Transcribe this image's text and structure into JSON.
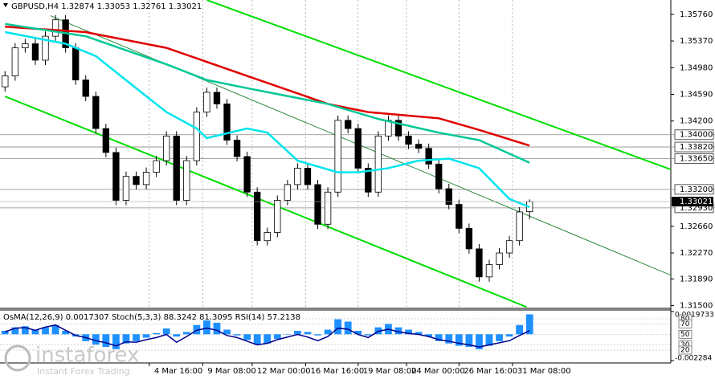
{
  "chart_data": {
    "type": "candlestick",
    "title": "GBPUSD,H4  1.32874 1.33053 1.32761 1.33021",
    "open": [
      1.347,
      1.3486,
      1.3527,
      1.3533,
      1.3509,
      1.3544,
      1.3568,
      1.3527,
      1.348,
      1.3456,
      1.3409,
      1.3374,
      1.3304,
      1.3339,
      1.3327,
      1.3345,
      1.3362,
      1.3398,
      1.3304,
      1.3362,
      1.3433,
      1.3462,
      1.3445,
      1.3392,
      1.3368,
      1.3316,
      1.3245,
      1.3257,
      1.3304,
      1.3327,
      1.3351,
      1.3327,
      1.3269,
      1.3316,
      1.3421,
      1.3409,
      1.3351,
      1.3316,
      1.3398,
      1.3421,
      1.3398,
      1.3386,
      1.338,
      1.3357,
      1.3321,
      1.3298,
      1.3263,
      1.3233,
      1.3192,
      1.321,
      1.3227,
      1.3245,
      1.32874
    ],
    "high": [
      1.3493,
      1.3534,
      1.354,
      1.354,
      1.3551,
      1.3575,
      1.3575,
      1.3534,
      1.3487,
      1.3463,
      1.3416,
      1.3381,
      1.3346,
      1.3346,
      1.3352,
      1.3369,
      1.3405,
      1.3405,
      1.3369,
      1.344,
      1.3469,
      1.3469,
      1.3452,
      1.3399,
      1.3375,
      1.3323,
      1.3264,
      1.3311,
      1.3334,
      1.3358,
      1.3358,
      1.3334,
      1.3323,
      1.3428,
      1.3428,
      1.3416,
      1.3358,
      1.3405,
      1.3428,
      1.3428,
      1.3405,
      1.3393,
      1.3387,
      1.3364,
      1.3328,
      1.3305,
      1.327,
      1.324,
      1.3217,
      1.3234,
      1.3252,
      1.3294,
      1.33053
    ],
    "low": [
      1.3463,
      1.3479,
      1.352,
      1.3502,
      1.3502,
      1.3537,
      1.352,
      1.3473,
      1.3449,
      1.3402,
      1.3367,
      1.3297,
      1.3297,
      1.332,
      1.332,
      1.3338,
      1.3355,
      1.3297,
      1.3297,
      1.3355,
      1.3426,
      1.3438,
      1.3385,
      1.3361,
      1.3309,
      1.3238,
      1.3238,
      1.325,
      1.3297,
      1.332,
      1.332,
      1.3262,
      1.3262,
      1.3309,
      1.3402,
      1.3344,
      1.3309,
      1.3309,
      1.3391,
      1.3391,
      1.3379,
      1.3373,
      1.335,
      1.3314,
      1.3291,
      1.3256,
      1.3226,
      1.3185,
      1.3185,
      1.3203,
      1.322,
      1.3238,
      1.32761
    ],
    "close": [
      1.3486,
      1.3527,
      1.3533,
      1.3509,
      1.3544,
      1.3568,
      1.3527,
      1.348,
      1.3456,
      1.3409,
      1.3374,
      1.3304,
      1.3339,
      1.3327,
      1.3345,
      1.3362,
      1.3398,
      1.3304,
      1.3362,
      1.3433,
      1.3462,
      1.3445,
      1.3392,
      1.3368,
      1.3316,
      1.3245,
      1.3257,
      1.3304,
      1.3327,
      1.3351,
      1.3327,
      1.3269,
      1.3316,
      1.3421,
      1.3409,
      1.3351,
      1.3316,
      1.3398,
      1.3421,
      1.3398,
      1.3386,
      1.338,
      1.3357,
      1.3321,
      1.3298,
      1.3263,
      1.3233,
      1.3192,
      1.321,
      1.3227,
      1.3245,
      1.3287,
      1.33021
    ],
    "up_color": "#ffffff",
    "down_color": "#000000",
    "moving_averages": [
      {
        "color": "#e00000",
        "x": [
          0,
          8,
          16,
          24,
          32,
          36,
          43,
          47,
          52
        ],
        "values": [
          1.3558,
          1.355,
          1.3527,
          1.3486,
          1.3445,
          1.3433,
          1.3424,
          1.3407,
          1.3384
        ]
      },
      {
        "color": "#00c896",
        "x": [
          0,
          8,
          16,
          20,
          24,
          32,
          37,
          43,
          47,
          52
        ],
        "values": [
          1.3562,
          1.3544,
          1.3503,
          1.348,
          1.3468,
          1.3445,
          1.3423,
          1.3403,
          1.3392,
          1.3359
        ]
      },
      {
        "color": "#00e5ee",
        "x": [
          0,
          6,
          9,
          13,
          16,
          19,
          20,
          24,
          26,
          29,
          33,
          35,
          38,
          41,
          44,
          47,
          50,
          52
        ],
        "values": [
          1.355,
          1.3533,
          1.3515,
          1.3468,
          1.3433,
          1.3409,
          1.3395,
          1.3409,
          1.3403,
          1.3362,
          1.3345,
          1.3345,
          1.3351,
          1.3362,
          1.3365,
          1.3351,
          1.3306,
          1.3294
        ]
      }
    ],
    "trend_lines": [
      {
        "color": "#00dd00",
        "width": 2,
        "x": [
          20,
          66.4
        ],
        "values": [
          1.3597,
          1.3347
        ]
      },
      {
        "color": "#00dd00",
        "width": 2,
        "x": [
          0,
          51.7
        ],
        "values": [
          1.3456,
          1.3148
        ]
      },
      {
        "color": "#2a8a3a",
        "width": 1,
        "x": [
          4.5,
          66.4
        ],
        "values": [
          1.3574,
          1.3192
        ]
      }
    ],
    "levels": [
      {
        "value": 1.34,
        "label": "1.34000"
      },
      {
        "value": 1.3382,
        "label": "1.33820"
      },
      {
        "value": 1.3365,
        "label": "1.33650"
      },
      {
        "value": 1.332,
        "label": "1.33200"
      },
      {
        "value": 1.3293,
        "label": "1.32930"
      }
    ],
    "current_price": {
      "value": 1.33021,
      "label": "1.33021"
    },
    "xlim": [
      -0.5,
      66
    ],
    "ylim": [
      1.3146,
      1.3597
    ],
    "yticks": [
      {
        "value": 1.3576,
        "label": "1.35760"
      },
      {
        "value": 1.3537,
        "label": "1.35370"
      },
      {
        "value": 1.3498,
        "label": "1.34980"
      },
      {
        "value": 1.3459,
        "label": "1.34590"
      },
      {
        "value": 1.342,
        "label": "1.34200"
      },
      {
        "value": 1.3266,
        "label": "1.32660"
      },
      {
        "value": 1.3227,
        "label": "1.32270"
      },
      {
        "value": 1.3189,
        "label": "1.31890"
      },
      {
        "value": 1.315,
        "label": "1.31500"
      }
    ],
    "xticks": [
      {
        "value": 14.3,
        "label": "4 Mar 16:00"
      },
      {
        "value": 19.6,
        "label": "9 Mar 08:00"
      },
      {
        "value": 24.5,
        "label": "12 Mar 00:00"
      },
      {
        "value": 29.8,
        "label": "16 Mar 16:00"
      },
      {
        "value": 35,
        "label": "19 Mar 08:00"
      },
      {
        "value": 39.8,
        "label": "24 Mar 00:00"
      },
      {
        "value": 45,
        "label": "26 Mar 16:00"
      },
      {
        "value": 50.3,
        "label": "31 Mar 08:00"
      }
    ],
    "indicator": {
      "label": "OsMA(12,26,9) 0.0017307  Stoch(5,3,3) 88.3242 81.3095  RSI(14) 57.2138",
      "osma_color": "#1e90ff",
      "osma": [
        0.0003,
        0.0006,
        0.0007,
        0.0004,
        0.0006,
        0.0008,
        0.0003,
        -0.0002,
        -0.0006,
        -0.0009,
        -0.0011,
        -0.0013,
        -0.0008,
        -0.0006,
        -0.0003,
        0.0001,
        0.0005,
        -0.0002,
        0.0002,
        0.0008,
        0.0012,
        0.001,
        0.0004,
        -0.0001,
        -0.0005,
        -0.0009,
        -0.0008,
        -0.0004,
        0,
        0.0003,
        0.0002,
        -0.0001,
        0.0004,
        0.0013,
        0.0011,
        0.0003,
        -0.0001,
        0.0006,
        0.0009,
        0.0006,
        0.0004,
        0.0002,
        -0.0002,
        -0.0006,
        -0.0008,
        -0.001,
        -0.0011,
        -0.0013,
        -0.001,
        -0.0006,
        -0.0002,
        0.0008,
        0.0017307
      ],
      "y2lim": [
        -0.002284,
        0.0019733
      ],
      "y2ticks": [
        0.0019733,
        -0.002284
      ],
      "rsi_color": "#00008b",
      "rsi": [
        55,
        62,
        63,
        58,
        64,
        68,
        58,
        48,
        44,
        38,
        34,
        28,
        36,
        35,
        40,
        44,
        50,
        35,
        46,
        58,
        62,
        58,
        48,
        44,
        37,
        30,
        33,
        40,
        45,
        50,
        45,
        38,
        46,
        62,
        60,
        50,
        44,
        56,
        60,
        55,
        52,
        50,
        46,
        40,
        37,
        33,
        30,
        26,
        30,
        34,
        38,
        48,
        57.2138
      ],
      "rsi_lim": [
        0,
        100
      ],
      "rsi_ticks": [
        80,
        70,
        50,
        30,
        20
      ]
    },
    "watermark": {
      "brand": "instaforex",
      "tagline": "Instant Forex Trading"
    }
  }
}
